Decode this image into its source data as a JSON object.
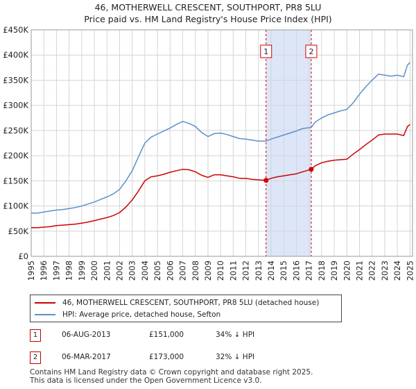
{
  "title_line1": "46, MOTHERWELL CRESCENT, SOUTHPORT, PR8 5LU",
  "title_line2": "Price paid vs. HM Land Registry's House Price Index (HPI)",
  "colors": {
    "price_line": "#cc0000",
    "hpi_line": "#5b8fcc",
    "highlight": "#dde6f8",
    "grid": "#d4d4d4"
  },
  "chart_data": {
    "type": "line",
    "xlim": [
      1995,
      2025.2
    ],
    "ylim": [
      0,
      450000
    ],
    "yticks": [
      0,
      50000,
      100000,
      150000,
      200000,
      250000,
      300000,
      350000,
      400000,
      450000
    ],
    "ytick_labels": [
      "£0",
      "£50K",
      "£100K",
      "£150K",
      "£200K",
      "£250K",
      "£300K",
      "£350K",
      "£400K",
      "£450K"
    ],
    "xticks": [
      1995,
      1996,
      1997,
      1998,
      1999,
      2000,
      2001,
      2002,
      2003,
      2004,
      2005,
      2006,
      2007,
      2008,
      2009,
      2010,
      2011,
      2012,
      2013,
      2014,
      2015,
      2016,
      2017,
      2018,
      2019,
      2020,
      2021,
      2022,
      2023,
      2024,
      2025
    ],
    "highlight_range": [
      2013.6,
      2017.18
    ],
    "series": [
      {
        "name": "46, MOTHERWELL CRESCENT, SOUTHPORT, PR8 5LU (detached house)",
        "x": [
          1995.0,
          1995.5,
          1996.0,
          1996.5,
          1997.0,
          1997.5,
          1998.0,
          1998.5,
          1999.0,
          1999.5,
          2000.0,
          2000.5,
          2001.0,
          2001.5,
          2002.0,
          2002.5,
          2003.0,
          2003.5,
          2004.0,
          2004.5,
          2005.0,
          2005.5,
          2006.0,
          2006.5,
          2007.0,
          2007.5,
          2008.0,
          2008.5,
          2009.0,
          2009.5,
          2010.0,
          2010.5,
          2011.0,
          2011.5,
          2012.0,
          2012.5,
          2013.0,
          2013.6,
          2014.0,
          2014.5,
          2015.0,
          2015.5,
          2016.0,
          2016.5,
          2017.18,
          2017.5,
          2018.0,
          2018.5,
          2019.0,
          2019.5,
          2020.0,
          2020.5,
          2021.0,
          2021.5,
          2022.0,
          2022.5,
          2023.0,
          2023.5,
          2024.0,
          2024.5,
          2024.8,
          2025.0
        ],
        "values": [
          57000,
          57000,
          58000,
          59000,
          61000,
          62000,
          63000,
          64000,
          66000,
          68000,
          71000,
          74000,
          77000,
          81000,
          87000,
          98000,
          112000,
          130000,
          150000,
          158000,
          160000,
          163000,
          167000,
          170000,
          173000,
          172000,
          168000,
          161000,
          157000,
          162000,
          162000,
          160000,
          158000,
          155000,
          155000,
          153000,
          152000,
          151000,
          155000,
          158000,
          160000,
          162000,
          164000,
          168000,
          173000,
          180000,
          186000,
          189000,
          191000,
          192000,
          193000,
          203000,
          212000,
          222000,
          231000,
          241000,
          243000,
          243000,
          243000,
          240000,
          258000,
          262000
        ]
      },
      {
        "name": "HPI: Average price, detached house, Sefton",
        "x": [
          1995.0,
          1995.5,
          1996.0,
          1996.5,
          1997.0,
          1997.5,
          1998.0,
          1998.5,
          1999.0,
          1999.5,
          2000.0,
          2000.5,
          2001.0,
          2001.5,
          2002.0,
          2002.5,
          2003.0,
          2003.5,
          2004.0,
          2004.5,
          2005.0,
          2005.5,
          2006.0,
          2006.5,
          2007.0,
          2007.5,
          2008.0,
          2008.5,
          2009.0,
          2009.5,
          2010.0,
          2010.5,
          2011.0,
          2011.5,
          2012.0,
          2012.5,
          2013.0,
          2013.6,
          2014.0,
          2014.5,
          2015.0,
          2015.5,
          2016.0,
          2016.5,
          2017.18,
          2017.5,
          2018.0,
          2018.5,
          2019.0,
          2019.5,
          2020.0,
          2020.5,
          2021.0,
          2021.5,
          2022.0,
          2022.5,
          2023.0,
          2023.5,
          2024.0,
          2024.5,
          2024.8,
          2025.0
        ],
        "values": [
          86000,
          86000,
          88000,
          90000,
          92000,
          93000,
          95000,
          97000,
          100000,
          104000,
          108000,
          113000,
          118000,
          124000,
          133000,
          150000,
          170000,
          198000,
          225000,
          237000,
          243000,
          249000,
          255000,
          262000,
          268000,
          264000,
          258000,
          246000,
          238000,
          244000,
          245000,
          242000,
          238000,
          234000,
          233000,
          231000,
          229000,
          229000,
          233000,
          237000,
          241000,
          245000,
          249000,
          254000,
          256000,
          267000,
          275000,
          281000,
          285000,
          289000,
          292000,
          305000,
          322000,
          337000,
          350000,
          362000,
          360000,
          358000,
          360000,
          357000,
          380000,
          385000
        ]
      }
    ],
    "transactions": [
      {
        "label": "1",
        "x": 2013.6,
        "value": 151000
      },
      {
        "label": "2",
        "x": 2017.18,
        "value": 173000
      }
    ]
  },
  "legend": {
    "price_label": "46, MOTHERWELL CRESCENT, SOUTHPORT, PR8 5LU (detached house)",
    "hpi_label": "HPI: Average price, detached house, Sefton"
  },
  "transactions_table": [
    {
      "badge": "1",
      "date": "06-AUG-2013",
      "price": "£151,000",
      "hpi": "34% ↓ HPI"
    },
    {
      "badge": "2",
      "date": "06-MAR-2017",
      "price": "£173,000",
      "hpi": "32% ↓ HPI"
    }
  ],
  "footer_line1": "Contains HM Land Registry data © Crown copyright and database right 2025.",
  "footer_line2": "This data is licensed under the Open Government Licence v3.0."
}
